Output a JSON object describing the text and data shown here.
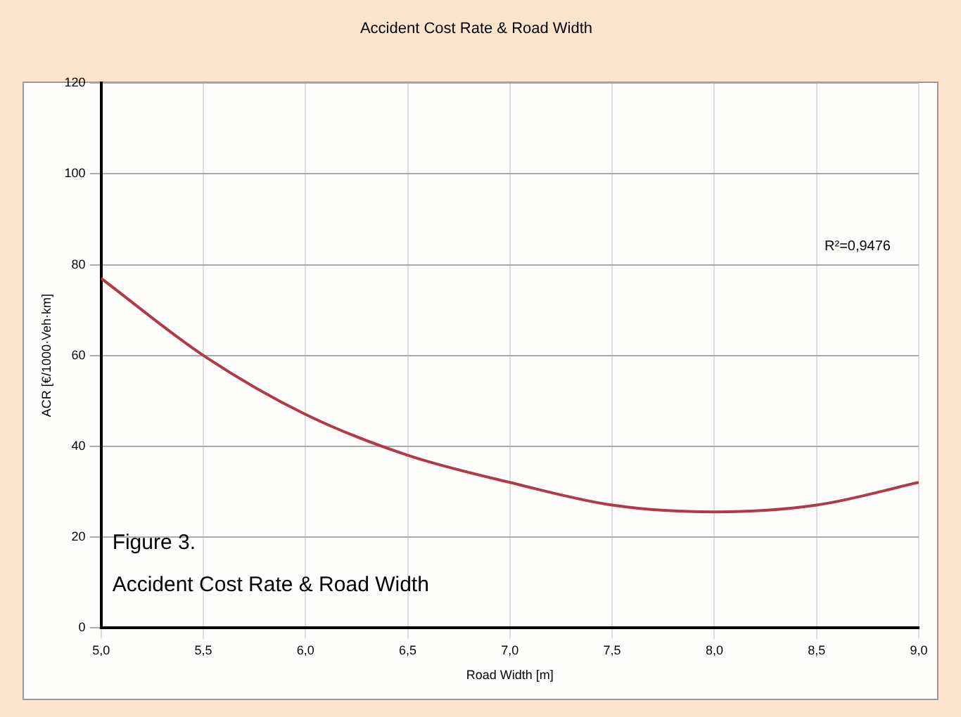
{
  "chart_data": {
    "type": "line",
    "title": "Accident Cost Rate & Road Width",
    "xlabel": "Road Width [m]",
    "ylabel": "ACR [€/1000·Veh·km]",
    "annotations": [
      "R²=0,9476",
      "Figure 3.",
      "Accident Cost Rate & Road Width"
    ],
    "series": [
      {
        "color": "#b03a48",
        "x": [
          5.0,
          5.5,
          6.0,
          6.5,
          7.0,
          7.5,
          8.0,
          8.5,
          9.0
        ],
        "values": [
          77,
          60,
          47,
          38,
          32,
          27,
          25.5,
          27,
          32
        ]
      }
    ],
    "xlim": [
      5,
      9
    ],
    "xticks": [
      {
        "value": 5,
        "label": "5,0"
      },
      {
        "value": 5.5,
        "label": "5,5"
      },
      {
        "value": 6,
        "label": "6,0"
      },
      {
        "value": 6.5,
        "label": "6,5"
      },
      {
        "value": 7,
        "label": "7,0"
      },
      {
        "value": 7.5,
        "label": "7,5"
      },
      {
        "value": 8,
        "label": "8,0"
      },
      {
        "value": 8.5,
        "label": "8,5"
      },
      {
        "value": 9,
        "label": "9,0"
      }
    ],
    "ylim": [
      0,
      120
    ],
    "yticks": [
      0,
      20,
      40,
      60,
      80,
      100,
      120
    ],
    "grid": true,
    "legend": false,
    "marker": "none",
    "line_style": "solid"
  }
}
